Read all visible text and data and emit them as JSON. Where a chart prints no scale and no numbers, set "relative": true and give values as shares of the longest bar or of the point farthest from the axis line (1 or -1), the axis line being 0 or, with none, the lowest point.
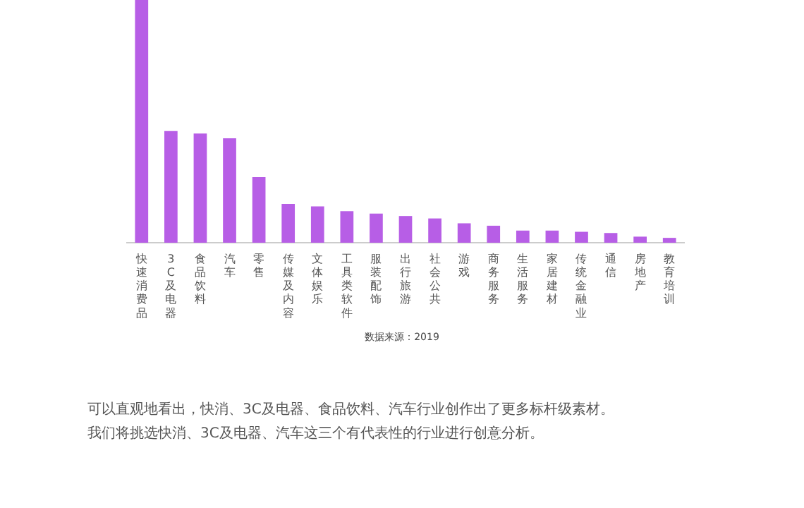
{
  "chart_data": {
    "type": "bar",
    "relative": true,
    "categories": [
      "快速消费品",
      "3C及电器",
      "食品饮料",
      "汽车",
      "零售",
      "传媒及内容",
      "文体娱乐",
      "工具类软件",
      "服装配饰",
      "出行旅游",
      "社会公共",
      "游戏",
      "商务服务",
      "生活服务",
      "家居建材",
      "传统金融业",
      "通信",
      "房地产",
      "教育培训"
    ],
    "values": [
      1,
      0.46,
      0.45,
      0.43,
      0.27,
      0.16,
      0.15,
      0.13,
      0.12,
      0.11,
      0.1,
      0.08,
      0.07,
      0.05,
      0.05,
      0.045,
      0.04,
      0.025,
      0.02
    ],
    "color": "#b75ee6",
    "grid": false,
    "legend": false,
    "annotations": [
      "数据来源：2019",
      "可以直观地看出，快消、3C及电器、食品饮料、汽车行业创作出了更多标杆级素材。",
      "我们将挑选快消、3C及电器、汽车这三个有代表性的行业进行创意分析。"
    ]
  }
}
